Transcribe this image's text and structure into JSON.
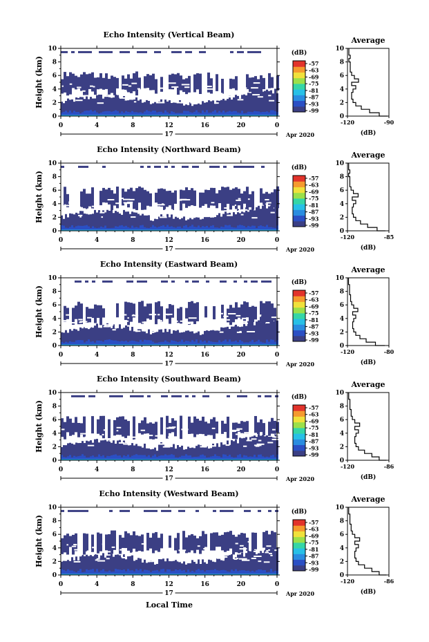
{
  "colors": {
    "echo_fill": "#3b3f84",
    "colorbar": [
      "#3b3f84",
      "#2b4fc4",
      "#2a8ce0",
      "#27c0e6",
      "#35d6a6",
      "#9be04a",
      "#f0e13b",
      "#f59a2e",
      "#e2332b"
    ]
  },
  "footer": {
    "xlabel": "Local Time"
  },
  "chart_data": [
    {
      "type": "heatmap",
      "title": "Echo Intensity (Vertical Beam)",
      "ylabel": "Height (km)",
      "x_ticks": [
        "0",
        "4",
        "8",
        "12",
        "16",
        "20",
        "0"
      ],
      "y_ticks": [
        "0",
        "2",
        "4",
        "6",
        "8",
        "10"
      ],
      "xlim": [
        0,
        24
      ],
      "ylim": [
        0,
        10
      ],
      "date_day": "17",
      "date_label": "Apr 2020",
      "colorbar": {
        "unit": "(dB)",
        "labels": [
          "-57",
          "-63",
          "-69",
          "-75",
          "-81",
          "-87",
          "-93",
          "-99"
        ]
      },
      "profile": {
        "title": "Average",
        "xlabel": "(dB)",
        "x_ticks": [
          "-120",
          "-90"
        ],
        "xlim": [
          -120,
          -90
        ],
        "height": [
          0,
          0.5,
          1,
          1.5,
          2,
          2.5,
          3,
          3.5,
          4,
          4.5,
          5,
          5.5,
          6,
          6.5,
          7,
          7.5,
          8,
          8.5,
          9,
          9.5,
          10
        ],
        "value": [
          -91,
          -97,
          -104,
          -110,
          -114,
          -116,
          -117,
          -117,
          -116,
          -114,
          -117,
          -112,
          -115,
          -117,
          -118,
          -118,
          -118,
          -119,
          -118,
          -119,
          -119
        ]
      }
    },
    {
      "type": "heatmap",
      "title": "Echo Intensity (Northward Beam)",
      "ylabel": "Height (km)",
      "x_ticks": [
        "0",
        "4",
        "8",
        "12",
        "16",
        "20",
        "0"
      ],
      "y_ticks": [
        "0",
        "2",
        "4",
        "6",
        "8",
        "10"
      ],
      "xlim": [
        0,
        24
      ],
      "ylim": [
        0,
        10
      ],
      "date_day": "17",
      "date_label": "Apr 2020",
      "colorbar": {
        "unit": "(dB)",
        "labels": [
          "-57",
          "-63",
          "-69",
          "-75",
          "-81",
          "-87",
          "-93",
          "-99"
        ]
      },
      "profile": {
        "title": "Average",
        "xlabel": "(dB)",
        "x_ticks": [
          "-120",
          "-85"
        ],
        "xlim": [
          -120,
          -85
        ],
        "height": [
          0,
          0.5,
          1,
          1.5,
          2,
          2.5,
          3,
          3.5,
          4,
          4.5,
          5,
          5.5,
          6,
          6.5,
          7,
          7.5,
          8,
          8.5,
          9,
          9.5,
          10
        ],
        "value": [
          -88,
          -95,
          -103,
          -109,
          -113,
          -115,
          -116,
          -116,
          -115,
          -113,
          -116,
          -111,
          -115,
          -117,
          -118,
          -118,
          -118,
          -119,
          -118,
          -119,
          -119
        ]
      }
    },
    {
      "type": "heatmap",
      "title": "Echo Intensity (Eastward Beam)",
      "ylabel": "Height (km)",
      "x_ticks": [
        "0",
        "4",
        "8",
        "12",
        "16",
        "20",
        "0"
      ],
      "y_ticks": [
        "0",
        "2",
        "4",
        "6",
        "8",
        "10"
      ],
      "xlim": [
        0,
        24
      ],
      "ylim": [
        0,
        10
      ],
      "date_day": "17",
      "date_label": "Apr 2020",
      "colorbar": {
        "unit": "(dB)",
        "labels": [
          "-57",
          "-63",
          "-69",
          "-75",
          "-81",
          "-87",
          "-93",
          "-99"
        ]
      },
      "profile": {
        "title": "Average",
        "xlabel": "(dB)",
        "x_ticks": [
          "-120",
          "-80"
        ],
        "xlim": [
          -120,
          -80
        ],
        "height": [
          0,
          0.5,
          1,
          1.5,
          2,
          2.5,
          3,
          3.5,
          4,
          4.5,
          5,
          5.5,
          6,
          6.5,
          7,
          7.5,
          8,
          8.5,
          9,
          9.5,
          10
        ],
        "value": [
          -84,
          -93,
          -102,
          -108,
          -112,
          -114,
          -115,
          -115,
          -114,
          -112,
          -115,
          -110,
          -114,
          -116,
          -117,
          -117,
          -118,
          -118,
          -118,
          -119,
          -119
        ]
      }
    },
    {
      "type": "heatmap",
      "title": "Echo Intensity (Southward Beam)",
      "ylabel": "Height (km)",
      "x_ticks": [
        "0",
        "4",
        "8",
        "12",
        "16",
        "20",
        "0"
      ],
      "y_ticks": [
        "0",
        "2",
        "4",
        "6",
        "8",
        "10"
      ],
      "xlim": [
        0,
        24
      ],
      "ylim": [
        0,
        10
      ],
      "date_day": "17",
      "date_label": "Apr 2020",
      "colorbar": {
        "unit": "(dB)",
        "labels": [
          "-57",
          "-63",
          "-69",
          "-75",
          "-81",
          "-87",
          "-93",
          "-99"
        ]
      },
      "profile": {
        "title": "Average",
        "xlabel": "(dB)",
        "x_ticks": [
          "-120",
          "-86"
        ],
        "xlim": [
          -120,
          -86
        ],
        "height": [
          0,
          0.5,
          1,
          1.5,
          2,
          2.5,
          3,
          3.5,
          4,
          4.5,
          5,
          5.5,
          6,
          6.5,
          7,
          7.5,
          8,
          8.5,
          9,
          9.5,
          10
        ],
        "value": [
          -88,
          -94,
          -100,
          -106,
          -111,
          -113,
          -114,
          -114,
          -113,
          -111,
          -114,
          -110,
          -114,
          -116,
          -117,
          -117,
          -118,
          -118,
          -118,
          -119,
          -119
        ]
      }
    },
    {
      "type": "heatmap",
      "title": "Echo Intensity (Westward Beam)",
      "ylabel": "Height (km)",
      "x_ticks": [
        "0",
        "4",
        "8",
        "12",
        "16",
        "20",
        "0"
      ],
      "y_ticks": [
        "0",
        "2",
        "4",
        "6",
        "8",
        "10"
      ],
      "xlim": [
        0,
        24
      ],
      "ylim": [
        0,
        10
      ],
      "date_day": "17",
      "date_label": "Apr 2020",
      "colorbar": {
        "unit": "(dB)",
        "labels": [
          "-57",
          "-63",
          "-69",
          "-75",
          "-81",
          "-87",
          "-93",
          "-99"
        ]
      },
      "profile": {
        "title": "Average",
        "xlabel": "(dB)",
        "x_ticks": [
          "-120",
          "-86"
        ],
        "xlim": [
          -120,
          -86
        ],
        "height": [
          0,
          0.5,
          1,
          1.5,
          2,
          2.5,
          3,
          3.5,
          4,
          4.5,
          5,
          5.5,
          6,
          6.5,
          7,
          7.5,
          8,
          8.5,
          9,
          9.5,
          10
        ],
        "value": [
          -88,
          -94,
          -100,
          -106,
          -111,
          -113,
          -114,
          -114,
          -113,
          -111,
          -114,
          -110,
          -114,
          -116,
          -117,
          -117,
          -118,
          -118,
          -118,
          -119,
          -119
        ]
      }
    }
  ]
}
